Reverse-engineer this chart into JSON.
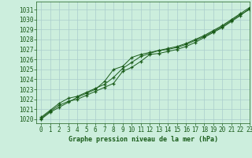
{
  "title": "Graphe pression niveau de la mer (hPa)",
  "bg_color": "#cceedd",
  "grid_color": "#aacccc",
  "line_color": "#1a5c1a",
  "xlim": [
    -0.5,
    23
  ],
  "ylim": [
    1019.6,
    1031.8
  ],
  "xticks": [
    0,
    1,
    2,
    3,
    4,
    5,
    6,
    7,
    8,
    9,
    10,
    11,
    12,
    13,
    14,
    15,
    16,
    17,
    18,
    19,
    20,
    21,
    22,
    23
  ],
  "yticks": [
    1020,
    1021,
    1022,
    1023,
    1024,
    1025,
    1026,
    1027,
    1028,
    1029,
    1030,
    1031
  ],
  "line1_x": [
    0,
    1,
    2,
    3,
    4,
    5,
    6,
    7,
    8,
    9,
    10,
    11,
    12,
    13,
    14,
    15,
    16,
    17,
    18,
    19,
    20,
    21,
    22,
    23
  ],
  "line1_y": [
    1020.1,
    1020.8,
    1021.4,
    1021.8,
    1022.0,
    1022.4,
    1022.8,
    1023.2,
    1023.6,
    1024.8,
    1025.2,
    1025.8,
    1026.5,
    1026.6,
    1026.8,
    1027.0,
    1027.3,
    1027.7,
    1028.2,
    1028.7,
    1029.2,
    1029.8,
    1030.4,
    1031.1
  ],
  "line2_x": [
    0,
    1,
    2,
    3,
    4,
    5,
    6,
    7,
    8,
    9,
    10,
    11,
    12,
    13,
    14,
    15,
    16,
    17,
    18,
    19,
    20,
    21,
    22,
    23
  ],
  "line2_y": [
    1020.2,
    1020.9,
    1021.6,
    1022.1,
    1022.3,
    1022.7,
    1023.1,
    1023.5,
    1024.2,
    1025.1,
    1025.7,
    1026.3,
    1026.6,
    1026.9,
    1027.1,
    1027.3,
    1027.6,
    1028.0,
    1028.4,
    1028.9,
    1029.4,
    1030.0,
    1030.6,
    1031.2
  ],
  "line3_x": [
    0,
    1,
    2,
    3,
    4,
    5,
    6,
    7,
    8,
    9,
    10,
    11,
    12,
    13,
    14,
    15,
    16,
    17,
    18,
    19,
    20,
    21,
    22,
    23
  ],
  "line3_y": [
    1020.0,
    1020.7,
    1021.2,
    1021.7,
    1022.2,
    1022.6,
    1023.0,
    1023.8,
    1025.0,
    1025.3,
    1026.2,
    1026.5,
    1026.7,
    1026.9,
    1027.0,
    1027.2,
    1027.5,
    1027.9,
    1028.3,
    1028.8,
    1029.3,
    1029.9,
    1030.5,
    1031.0
  ],
  "title_fontsize": 6.0,
  "tick_fontsize": 5.5,
  "lw": 0.7,
  "marker_size": 3.5
}
